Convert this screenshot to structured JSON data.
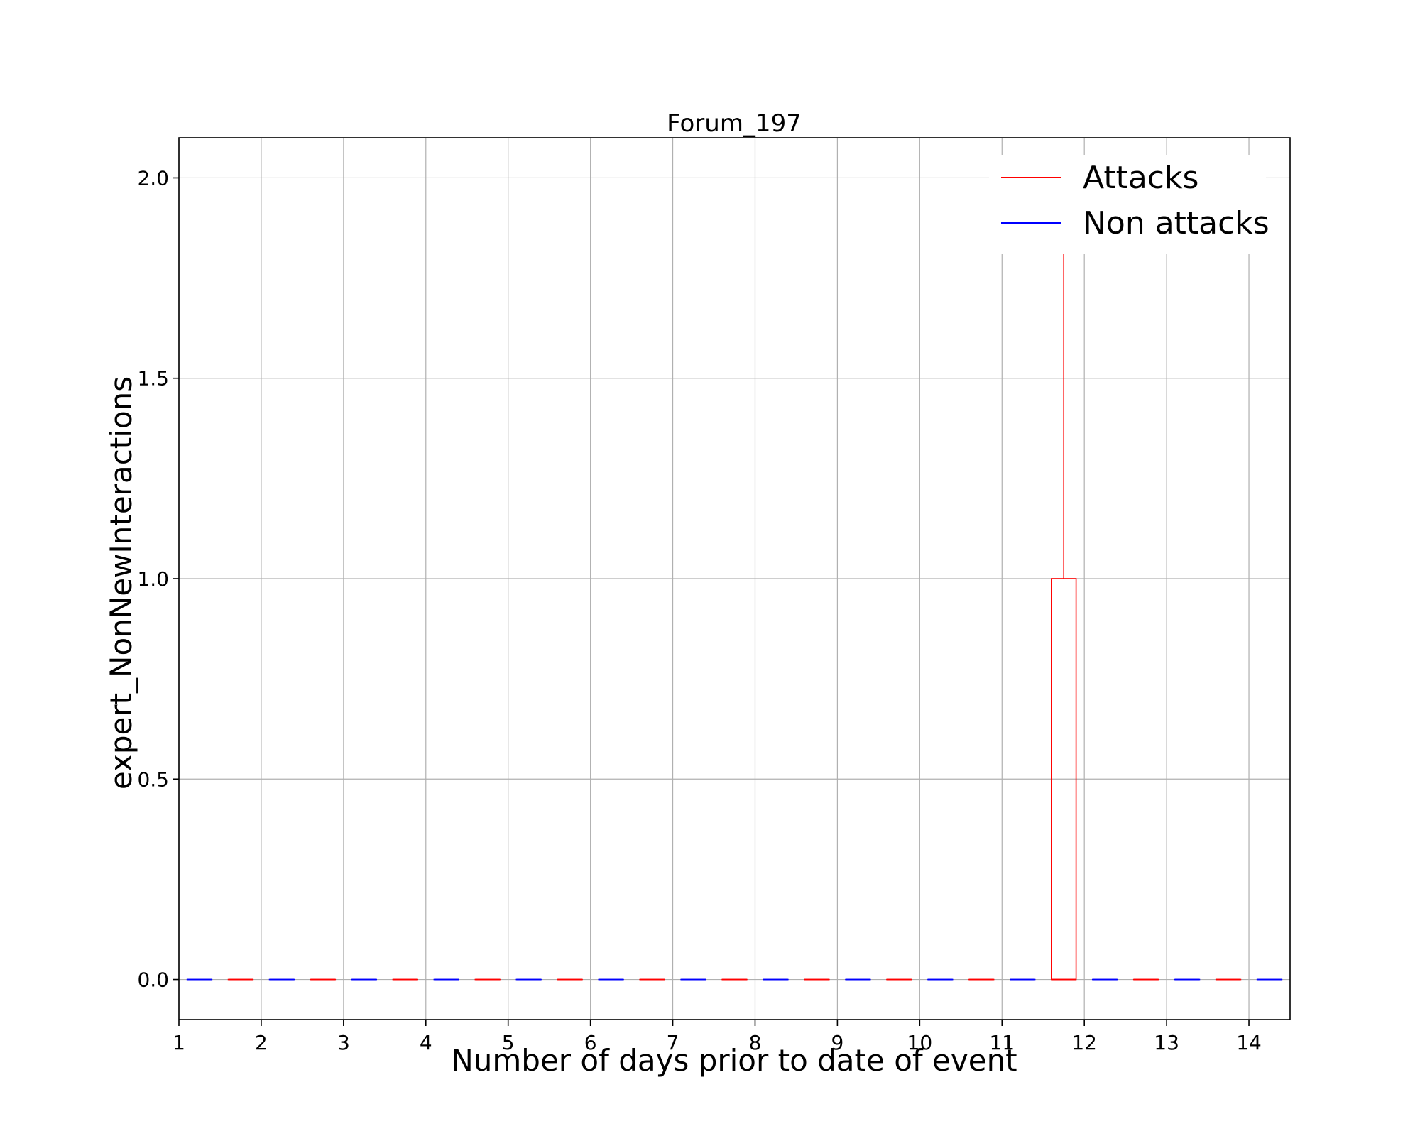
{
  "chart_data": {
    "type": "box",
    "title": "Forum_197",
    "xlabel": "Number of days prior to date of event",
    "ylabel": "expert_NonNewInteractions",
    "xlim": [
      1,
      14.5
    ],
    "ylim": [
      -0.1,
      2.1
    ],
    "xticks": [
      1,
      2,
      3,
      4,
      5,
      6,
      7,
      8,
      9,
      10,
      11,
      12,
      13,
      14
    ],
    "yticks": [
      0.0,
      0.5,
      1.0,
      1.5,
      2.0
    ],
    "ytick_labels": [
      "0.0",
      "0.5",
      "1.0",
      "1.5",
      "2.0"
    ],
    "grid": true,
    "legend_position": "top-right",
    "series": [
      {
        "name": "Attacks",
        "color": "#ff0000",
        "boxes": [
          {
            "x": 1.75,
            "q1": 0,
            "q3": 0,
            "median": 0,
            "whisker_low": 0,
            "whisker_high": 0
          },
          {
            "x": 2.75,
            "q1": 0,
            "q3": 0,
            "median": 0,
            "whisker_low": 0,
            "whisker_high": 0
          },
          {
            "x": 3.75,
            "q1": 0,
            "q3": 0,
            "median": 0,
            "whisker_low": 0,
            "whisker_high": 0
          },
          {
            "x": 4.75,
            "q1": 0,
            "q3": 0,
            "median": 0,
            "whisker_low": 0,
            "whisker_high": 0
          },
          {
            "x": 5.75,
            "q1": 0,
            "q3": 0,
            "median": 0,
            "whisker_low": 0,
            "whisker_high": 0
          },
          {
            "x": 6.75,
            "q1": 0,
            "q3": 0,
            "median": 0,
            "whisker_low": 0,
            "whisker_high": 0
          },
          {
            "x": 7.75,
            "q1": 0,
            "q3": 0,
            "median": 0,
            "whisker_low": 0,
            "whisker_high": 0
          },
          {
            "x": 8.75,
            "q1": 0,
            "q3": 0,
            "median": 0,
            "whisker_low": 0,
            "whisker_high": 0
          },
          {
            "x": 9.75,
            "q1": 0,
            "q3": 0,
            "median": 0,
            "whisker_low": 0,
            "whisker_high": 0
          },
          {
            "x": 10.75,
            "q1": 0,
            "q3": 0,
            "median": 0,
            "whisker_low": 0,
            "whisker_high": 0
          },
          {
            "x": 11.75,
            "q1": 0,
            "q3": 1,
            "median": 0,
            "whisker_low": 0,
            "whisker_high": 2
          },
          {
            "x": 12.75,
            "q1": 0,
            "q3": 0,
            "median": 0,
            "whisker_low": 0,
            "whisker_high": 0
          },
          {
            "x": 13.75,
            "q1": 0,
            "q3": 0,
            "median": 0,
            "whisker_low": 0,
            "whisker_high": 0
          }
        ]
      },
      {
        "name": "Non attacks",
        "color": "#0000ff",
        "boxes": [
          {
            "x": 1.25,
            "q1": 0,
            "q3": 0,
            "median": 0,
            "whisker_low": 0,
            "whisker_high": 0
          },
          {
            "x": 2.25,
            "q1": 0,
            "q3": 0,
            "median": 0,
            "whisker_low": 0,
            "whisker_high": 0
          },
          {
            "x": 3.25,
            "q1": 0,
            "q3": 0,
            "median": 0,
            "whisker_low": 0,
            "whisker_high": 0
          },
          {
            "x": 4.25,
            "q1": 0,
            "q3": 0,
            "median": 0,
            "whisker_low": 0,
            "whisker_high": 0
          },
          {
            "x": 5.25,
            "q1": 0,
            "q3": 0,
            "median": 0,
            "whisker_low": 0,
            "whisker_high": 0
          },
          {
            "x": 6.25,
            "q1": 0,
            "q3": 0,
            "median": 0,
            "whisker_low": 0,
            "whisker_high": 0
          },
          {
            "x": 7.25,
            "q1": 0,
            "q3": 0,
            "median": 0,
            "whisker_low": 0,
            "whisker_high": 0
          },
          {
            "x": 8.25,
            "q1": 0,
            "q3": 0,
            "median": 0,
            "whisker_low": 0,
            "whisker_high": 0
          },
          {
            "x": 9.25,
            "q1": 0,
            "q3": 0,
            "median": 0,
            "whisker_low": 0,
            "whisker_high": 0
          },
          {
            "x": 10.25,
            "q1": 0,
            "q3": 0,
            "median": 0,
            "whisker_low": 0,
            "whisker_high": 0
          },
          {
            "x": 11.25,
            "q1": 0,
            "q3": 0,
            "median": 0,
            "whisker_low": 0,
            "whisker_high": 0
          },
          {
            "x": 12.25,
            "q1": 0,
            "q3": 0,
            "median": 0,
            "whisker_low": 0,
            "whisker_high": 0
          },
          {
            "x": 13.25,
            "q1": 0,
            "q3": 0,
            "median": 0,
            "whisker_low": 0,
            "whisker_high": 0
          },
          {
            "x": 14.25,
            "q1": 0,
            "q3": 0,
            "median": 0,
            "whisker_low": 0,
            "whisker_high": 0
          }
        ]
      }
    ]
  }
}
